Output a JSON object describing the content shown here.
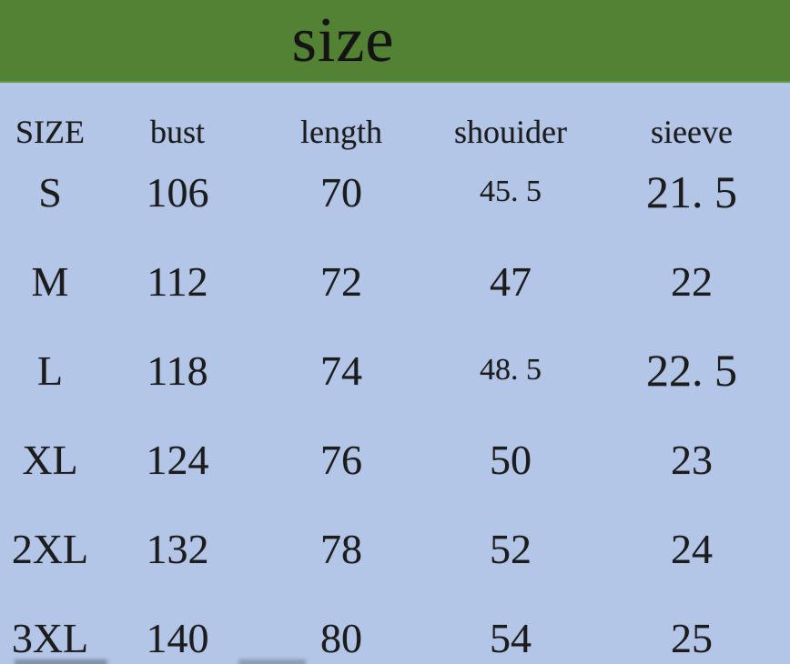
{
  "title": "size",
  "colors": {
    "header_bg": "#538234",
    "body_bg": "#b4c6e7",
    "text": "#1c1c1c"
  },
  "table": {
    "headers": [
      "SIZE",
      "bust",
      "length",
      "shouider",
      "sieeve"
    ],
    "rows": [
      {
        "size": "S",
        "bust": "106",
        "length": "70",
        "shoulder": "45. 5",
        "sleeve": "21. 5"
      },
      {
        "size": "M",
        "bust": "112",
        "length": "72",
        "shoulder": "47",
        "sleeve": "22"
      },
      {
        "size": "L",
        "bust": "118",
        "length": "74",
        "shoulder": "48. 5",
        "sleeve": "22. 5"
      },
      {
        "size": "XL",
        "bust": "124",
        "length": "76",
        "shoulder": "50",
        "sleeve": "23"
      },
      {
        "size": "2XL",
        "bust": "132",
        "length": "78",
        "shoulder": "52",
        "sleeve": "24"
      },
      {
        "size": "3XL",
        "bust": "140",
        "length": "80",
        "shoulder": "54",
        "sleeve": "25"
      }
    ]
  },
  "chart_data": {
    "type": "table",
    "title": "size",
    "columns": [
      "SIZE",
      "bust",
      "length",
      "shouider",
      "sieeve"
    ],
    "rows": [
      [
        "S",
        106,
        70,
        45.5,
        21.5
      ],
      [
        "M",
        112,
        72,
        47,
        22
      ],
      [
        "L",
        118,
        74,
        48.5,
        22.5
      ],
      [
        "XL",
        124,
        76,
        50,
        23
      ],
      [
        "2XL",
        132,
        78,
        52,
        24
      ],
      [
        "3XL",
        140,
        80,
        54,
        25
      ]
    ]
  }
}
